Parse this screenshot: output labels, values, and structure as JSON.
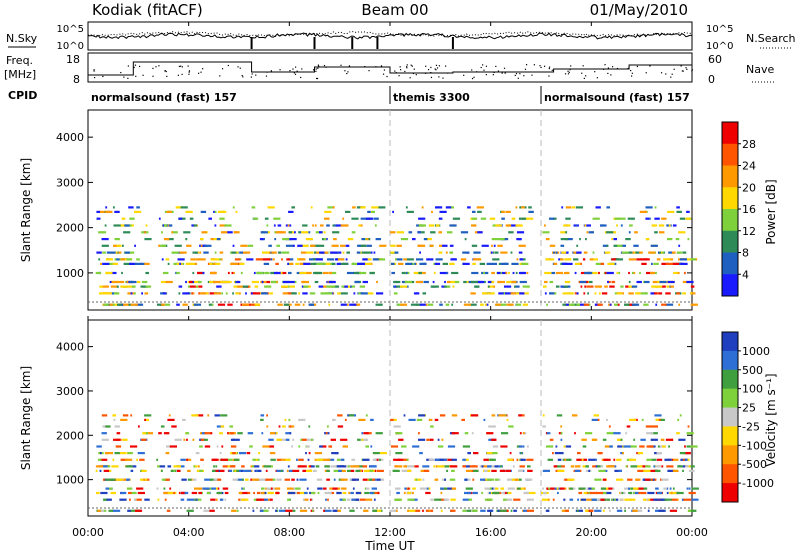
{
  "header": {
    "site": "Kodiak (fitACF)",
    "beam": "Beam 00",
    "date": "01/May/2010"
  },
  "top_panels": {
    "nsky_label": "N.Sky",
    "nsky_ticks": [
      "10^5",
      "10^0"
    ],
    "nsearch_label": "N.Search",
    "nsearch_ticks": [
      "10^5",
      "10^0"
    ],
    "freq_label": "Freq.",
    "freq_unit": "[MHz]",
    "freq_ticks": [
      "18",
      "8"
    ],
    "nave_label": "Nave",
    "nave_ticks": [
      "60",
      "0"
    ],
    "cpid_label": "CPID",
    "cpid_segments": [
      {
        "label": "normalsound (fast) 157",
        "start": 0,
        "end": 12
      },
      {
        "label": "themis 3300",
        "start": 12,
        "end": 18
      },
      {
        "label": "normalsound (fast) 157",
        "start": 18,
        "end": 24
      }
    ]
  },
  "chart_data": [
    {
      "type": "heatmap",
      "panel": "power",
      "ylabel": "Slant Range [km]",
      "yticks": [
        "1000",
        "2000",
        "3000",
        "4000"
      ],
      "ylim": [
        180,
        4600
      ],
      "xlim": [
        0,
        24
      ],
      "colorbar": {
        "label": "Power [dB]",
        "ticks": [
          "4",
          "8",
          "12",
          "16",
          "20",
          "24",
          "28"
        ],
        "colors": [
          "#1a1aff",
          "#1f5fbf",
          "#2e8b57",
          "#7fd13b",
          "#ffd800",
          "#ff9900",
          "#ff5500",
          "#ee0000"
        ]
      },
      "range_bands_km": [
        300,
        550,
        700,
        800,
        1000,
        1200,
        1300,
        1450,
        1600,
        1750,
        1900,
        2050,
        2200,
        2350,
        2450
      ],
      "activity_windows": [
        [
          0.3,
          2.3
        ],
        [
          2.7,
          11.6
        ],
        [
          12.0,
          14.5
        ],
        [
          14.8,
          17.5
        ],
        [
          18.0,
          24.0
        ]
      ]
    },
    {
      "type": "heatmap",
      "panel": "velocity",
      "ylabel": "Slant Range [km]",
      "yticks": [
        "1000",
        "2000",
        "3000",
        "4000"
      ],
      "ylim": [
        180,
        4600
      ],
      "xlim": [
        0,
        24
      ],
      "colorbar": {
        "label": "Velocity",
        "unit": "[m s⁻¹]",
        "ticks": [
          "1000",
          "500",
          "100",
          "25",
          "-25",
          "-100",
          "-500",
          "-1000"
        ],
        "colors": [
          "#1f3fbf",
          "#2e6fd6",
          "#3f9f3f",
          "#7fd13b",
          "#c8c8c8",
          "#ffd800",
          "#ff9900",
          "#ff5500",
          "#ee0000"
        ]
      }
    }
  ],
  "xaxis": {
    "label": "Time UT",
    "ticks": [
      "00:00",
      "04:00",
      "08:00",
      "12:00",
      "16:00",
      "20:00",
      "00:00"
    ]
  }
}
